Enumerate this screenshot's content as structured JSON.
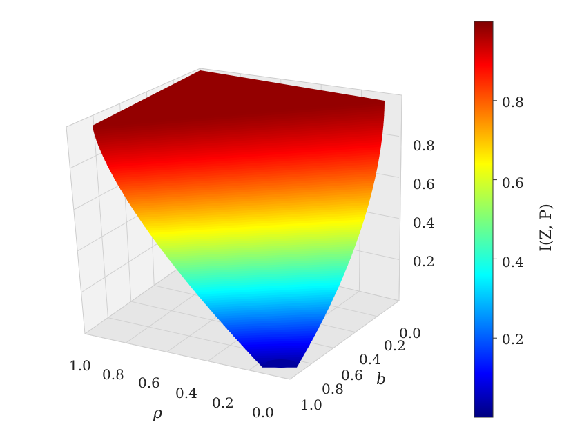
{
  "chart_data": {
    "type": "surface3d",
    "title": "",
    "xlabel": "ρ",
    "ylabel": "b",
    "zlabel": "",
    "x_ticks": [
      "1.0",
      "0.8",
      "0.6",
      "0.4",
      "0.2",
      "0.0"
    ],
    "y_ticks": [
      "0.0",
      "0.2",
      "0.4",
      "0.6",
      "0.8",
      "1.0"
    ],
    "z_ticks": [
      "0.2",
      "0.4",
      "0.6",
      "0.8"
    ],
    "xlim": [
      0,
      1
    ],
    "ylim": [
      0,
      1
    ],
    "zlim": [
      0,
      1
    ],
    "function_description": "I(Z,P) rises from ~0 at rho=0, b=1 toward ~1 at rho=1 or b=0",
    "sample_points": [
      {
        "rho": 0.0,
        "b": 1.0,
        "I": 0.0
      },
      {
        "rho": 0.0,
        "b": 0.0,
        "I": 0.97
      },
      {
        "rho": 1.0,
        "b": 1.0,
        "I": 0.99
      },
      {
        "rho": 1.0,
        "b": 0.0,
        "I": 1.0
      },
      {
        "rho": 0.5,
        "b": 0.5,
        "I": 0.55
      }
    ],
    "colormap": "jet",
    "grid": true,
    "colorbar": {
      "label": "I(Z, P)",
      "ticks": [
        "0.2",
        "0.4",
        "0.6",
        "0.8"
      ],
      "range": [
        0.0,
        1.0
      ]
    }
  }
}
